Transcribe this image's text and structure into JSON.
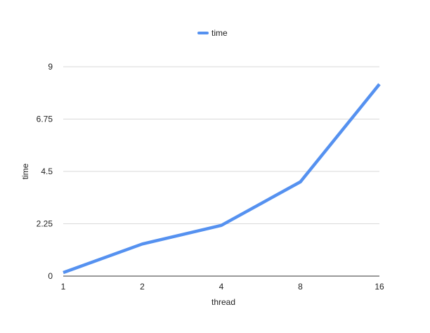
{
  "chart_data": {
    "type": "line",
    "title": "",
    "xlabel": "thread",
    "ylabel": "time",
    "categories": [
      "1",
      "2",
      "4",
      "8",
      "16"
    ],
    "series": [
      {
        "name": "time",
        "color": "#5591f0",
        "values": [
          0.15,
          1.38,
          2.18,
          4.05,
          8.25
        ]
      }
    ],
    "ylim": [
      0,
      9
    ],
    "yticks": [
      0,
      2.25,
      4.5,
      6.75,
      9
    ],
    "ytick_labels": [
      "0",
      "2.25",
      "4.5",
      "6.75",
      "9"
    ],
    "grid": true,
    "legend": "top-center",
    "colors": {
      "grid": "#d9d9d9",
      "axis": "#333333",
      "text": "#222222"
    }
  }
}
